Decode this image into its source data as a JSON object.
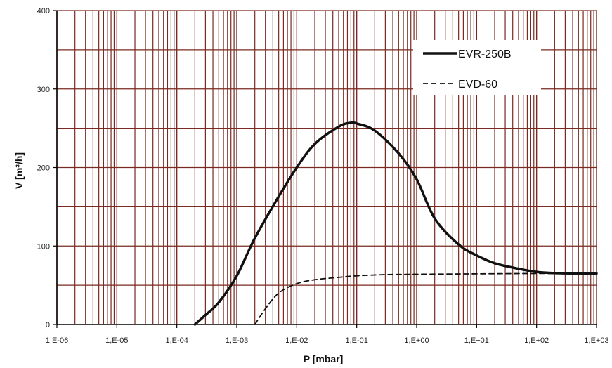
{
  "chart_data": {
    "type": "line",
    "xlabel": "P [mbar]",
    "ylabel": "V [m³/h]",
    "xscale": "log",
    "xlim": [
      1e-06,
      1000
    ],
    "ylim": [
      0,
      400
    ],
    "x_ticks": [
      "1,E-06",
      "1,E-05",
      "1,E-04",
      "1,E-03",
      "1,E-02",
      "1,E-01",
      "1,E+00",
      "1,E+01",
      "1,E+02",
      "1,E+03"
    ],
    "y_ticks": [
      "0",
      "100",
      "200",
      "300",
      "400"
    ],
    "grid": true,
    "legend_position": "top-right",
    "colors": {
      "grid": "#7a2a20",
      "line": "#111111",
      "axis": "#000000"
    },
    "series": [
      {
        "name": "EVR-250B",
        "style": "solid",
        "points": [
          [
            0.0002,
            0
          ],
          [
            0.0003,
            12
          ],
          [
            0.0005,
            28
          ],
          [
            0.001,
            62
          ],
          [
            0.002,
            110
          ],
          [
            0.005,
            163
          ],
          [
            0.01,
            200
          ],
          [
            0.02,
            230
          ],
          [
            0.05,
            252
          ],
          [
            0.08,
            257
          ],
          [
            0.1,
            256
          ],
          [
            0.2,
            247
          ],
          [
            0.5,
            218
          ],
          [
            1,
            185
          ],
          [
            2,
            135
          ],
          [
            5,
            102
          ],
          [
            10,
            88
          ],
          [
            20,
            78
          ],
          [
            50,
            71
          ],
          [
            100,
            67
          ],
          [
            200,
            65.5
          ],
          [
            500,
            65
          ],
          [
            1000,
            65
          ]
        ]
      },
      {
        "name": "EVD-60",
        "style": "dashed",
        "points": [
          [
            0.002,
            0
          ],
          [
            0.003,
            20
          ],
          [
            0.005,
            40
          ],
          [
            0.01,
            52
          ],
          [
            0.02,
            57
          ],
          [
            0.05,
            60
          ],
          [
            0.1,
            62
          ],
          [
            0.3,
            63.5
          ],
          [
            1,
            64
          ],
          [
            10,
            64.5
          ],
          [
            100,
            65
          ],
          [
            1000,
            65
          ]
        ]
      }
    ]
  }
}
